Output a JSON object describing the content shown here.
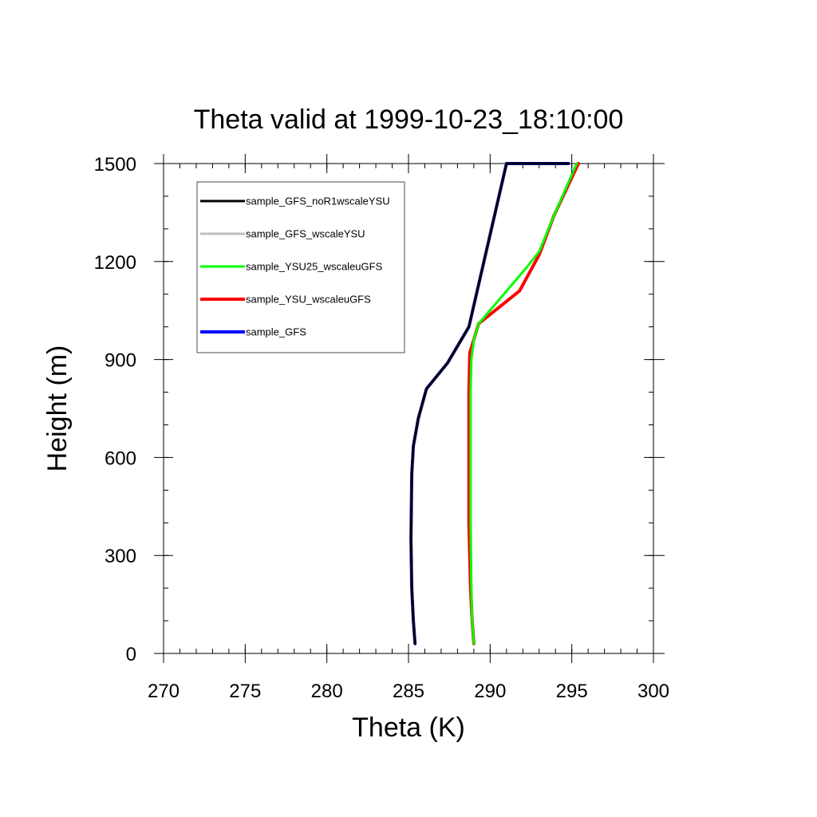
{
  "chart_data": {
    "type": "line",
    "title": "Theta valid at 1999-10-23_18:10:00",
    "xlabel": "Theta (K)",
    "ylabel": "Height (m)",
    "xlim": [
      270,
      300
    ],
    "ylim": [
      0,
      1500
    ],
    "xticks": [
      270,
      275,
      280,
      285,
      290,
      295,
      300
    ],
    "yticks": [
      0,
      300,
      600,
      900,
      1200,
      1500
    ],
    "grid": false,
    "legend_position": "top-left",
    "series": [
      {
        "name": "sample_GFS_noR1wscaleYSU",
        "color": "#000000",
        "width": 3,
        "x": [
          285.4,
          285.3,
          285.2,
          285.15,
          285.2,
          285.3,
          285.6,
          286.1,
          287.4,
          288.7,
          291.0,
          294.8
        ],
        "y": [
          30,
          100,
          200,
          350,
          550,
          635,
          720,
          810,
          890,
          1000,
          1500,
          1500
        ]
      },
      {
        "name": "sample_GFS_wscaleYSU",
        "color": "#bdbdbd",
        "width": 3,
        "x": [
          285.4,
          285.3,
          285.2,
          285.15,
          285.2,
          285.3,
          285.6,
          286.1,
          287.4,
          288.7,
          291.0,
          294.8
        ],
        "y": [
          30,
          100,
          200,
          350,
          550,
          635,
          720,
          810,
          890,
          1000,
          1500,
          1500
        ]
      },
      {
        "name": "sample_YSU25_wscaleuGFS",
        "color": "#00ff00",
        "width": 3,
        "x": [
          289.0,
          288.9,
          288.85,
          288.8,
          288.8,
          288.8,
          288.85,
          289.0,
          289.3,
          292.2,
          293.0,
          293.9,
          295.3
        ],
        "y": [
          30,
          100,
          200,
          400,
          600,
          800,
          900,
          960,
          1010,
          1180,
          1230,
          1340,
          1500
        ]
      },
      {
        "name": "sample_YSU_wscaleuGFS",
        "color": "#ff0000",
        "width": 4,
        "x": [
          289.0,
          288.9,
          288.8,
          288.7,
          288.7,
          288.7,
          288.75,
          289.3,
          291.8,
          293.0,
          293.9,
          295.4
        ],
        "y": [
          30,
          100,
          200,
          400,
          600,
          800,
          920,
          1010,
          1110,
          1220,
          1340,
          1500
        ]
      },
      {
        "name": "sample_GFS",
        "color": "#0000ff",
        "width": 4,
        "x": [
          285.4,
          285.3,
          285.2,
          285.15,
          285.2,
          285.3,
          285.6,
          286.1,
          287.4,
          288.7,
          291.0,
          294.8
        ],
        "y": [
          30,
          100,
          200,
          350,
          550,
          635,
          720,
          810,
          890,
          1000,
          1500,
          1500
        ]
      }
    ]
  }
}
